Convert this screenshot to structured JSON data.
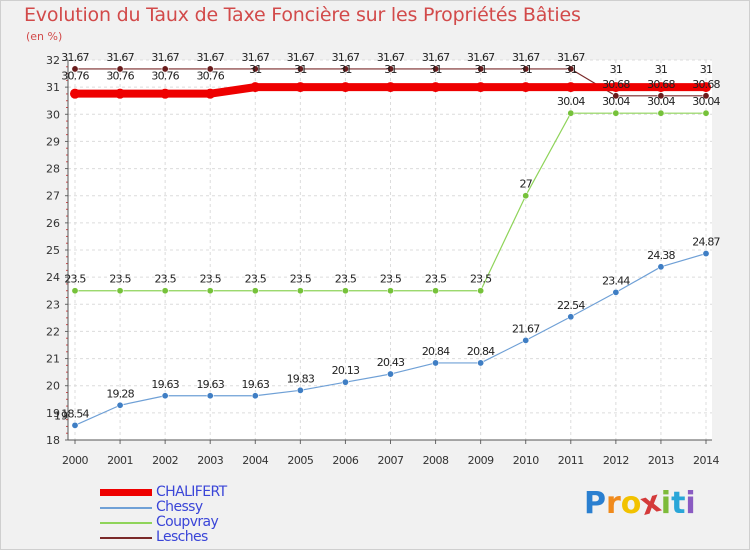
{
  "header": {
    "title": "Evolution du Taux de Taxe Foncière sur les Propriétés Bâties",
    "subtitle": "(en %)"
  },
  "chart_data": {
    "type": "line",
    "title": "Evolution du Taux de Taxe Foncière sur les Propriétés Bâties",
    "ylabel": "(en %)",
    "xlabel": "",
    "ylim": [
      18,
      32
    ],
    "yticks": [
      "18",
      "19",
      "20",
      "21",
      "22",
      "23",
      "24",
      "25",
      "26",
      "27",
      "28",
      "29",
      "30",
      "31",
      "32"
    ],
    "x": [
      "2000",
      "2001",
      "2002",
      "2003",
      "2004",
      "2005",
      "2006",
      "2007",
      "2008",
      "2009",
      "2010",
      "2011",
      "2012",
      "2013",
      "2014"
    ],
    "series": [
      {
        "name": "CHALIFERT",
        "color": "#ee0000",
        "values": [
          30.76,
          30.76,
          30.76,
          30.76,
          31,
          31,
          31,
          31,
          31,
          31,
          31,
          31,
          31,
          31,
          31
        ],
        "labels": [
          "30.76",
          "30.76",
          "30.76",
          "30.76",
          "31",
          "31",
          "31",
          "31",
          "31",
          "31",
          "31",
          "31",
          "31",
          "31",
          "31"
        ]
      },
      {
        "name": "Chessy",
        "color": "#6fa0d6",
        "values": [
          18.54,
          19.28,
          19.63,
          19.63,
          19.63,
          19.83,
          20.13,
          20.43,
          20.84,
          20.84,
          21.67,
          22.54,
          23.44,
          24.38,
          24.87
        ],
        "labels": [
          "18.54",
          "19.28",
          "19.63",
          "19.63",
          "19.63",
          "19.83",
          "20.13",
          "20.43",
          "20.84",
          "20.84",
          "21.67",
          "22.54",
          "23.44",
          "24.38",
          "24.87"
        ]
      },
      {
        "name": "Coupvray",
        "color": "#8fd45a",
        "values": [
          23.5,
          23.5,
          23.5,
          23.5,
          23.5,
          23.5,
          23.5,
          23.5,
          23.5,
          23.5,
          27,
          30.04,
          30.04,
          30.04,
          30.04
        ],
        "labels": [
          "23.5",
          "23.5",
          "23.5",
          "23.5",
          "23.5",
          "23.5",
          "23.5",
          "23.5",
          "23.5",
          "23.5",
          "27",
          "30.04",
          "30.04",
          "30.04",
          "30.04"
        ]
      },
      {
        "name": "Lesches",
        "color": "#7a2a2a",
        "values": [
          31.67,
          31.67,
          31.67,
          31.67,
          31.67,
          31.67,
          31.67,
          31.67,
          31.67,
          31.67,
          31.67,
          31.67,
          30.68,
          30.68,
          30.68
        ],
        "labels": [
          "31.67",
          "31.67",
          "31.67",
          "31.67",
          "31.67",
          "31.67",
          "31.67",
          "31.67",
          "31.67",
          "31.67",
          "31.67",
          "31.67",
          "30.68",
          "30.68",
          "30.68"
        ]
      }
    ],
    "extra_labels": [
      "19"
    ],
    "legend": "bottom-left"
  },
  "brand": {
    "letters": [
      "P",
      "r",
      "o",
      "x",
      "i",
      "t",
      "i"
    ],
    "colors": [
      "#2a7fd0",
      "#f08a1c",
      "#f2c200",
      "#d43a3a",
      "#7dbb3a",
      "#2aa6d8",
      "#8a5bc2"
    ]
  }
}
